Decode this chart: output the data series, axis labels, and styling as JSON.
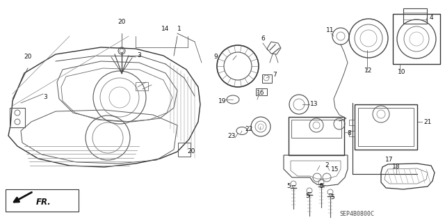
{
  "bg_color": "#ffffff",
  "fig_width": 6.4,
  "fig_height": 3.19,
  "dpi": 100,
  "diagram_code": "SEP4B0800C",
  "fr_label": "FR."
}
